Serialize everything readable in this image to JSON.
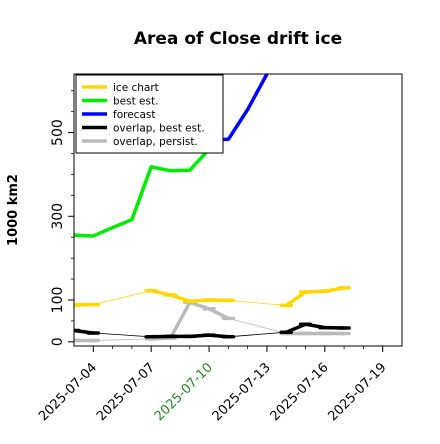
{
  "chart_data": {
    "type": "line",
    "title": "Area of Close drift ice",
    "ylabel": "1000 km2",
    "xlabel": "",
    "ylim": [
      -10,
      640
    ],
    "xlim": [
      "2025-07-03",
      "2025-07-20"
    ],
    "y_ticks": [
      {
        "value": 0,
        "label": "0"
      },
      {
        "value": 100,
        "label": "100"
      },
      {
        "value": 300,
        "label": "300"
      },
      {
        "value": 500,
        "label": "500"
      }
    ],
    "y_minor_ticks": [
      50,
      150,
      200,
      250,
      350,
      400,
      450,
      550,
      600
    ],
    "x_ticks": [
      {
        "value": "2025-07-04",
        "label": "2025-07-04",
        "color": "#000000"
      },
      {
        "value": "2025-07-07",
        "label": "2025-07-07",
        "color": "#000000"
      },
      {
        "value": "2025-07-10",
        "label": "2025-07-10",
        "color": "#228B22"
      },
      {
        "value": "2025-07-13",
        "label": "2025-07-13",
        "color": "#000000"
      },
      {
        "value": "2025-07-16",
        "label": "2025-07-16",
        "color": "#000000"
      },
      {
        "value": "2025-07-19",
        "label": "2025-07-19",
        "color": "#000000"
      }
    ],
    "x_minor_ticks": [
      "2025-07-05",
      "2025-07-06",
      "2025-07-08",
      "2025-07-09",
      "2025-07-11",
      "2025-07-12",
      "2025-07-14",
      "2025-07-15",
      "2025-07-17",
      "2025-07-18"
    ],
    "grid": false,
    "legend": {
      "position": "top-left",
      "entries": [
        {
          "label": "ice chart",
          "color": "#FFD700"
        },
        {
          "label": "best est.",
          "color": "#00EE00"
        },
        {
          "label": "forecast",
          "color": "#0000FF"
        },
        {
          "label": "overlap, best est.",
          "color": "#000000"
        },
        {
          "label": "overlap, persist.",
          "color": "#BBBBBB"
        }
      ]
    },
    "series": [
      {
        "name": "ice chart",
        "color": "#FFD700",
        "points": [
          {
            "x": "2025-07-03",
            "y": 88,
            "marker": true
          },
          {
            "x": "2025-07-04",
            "y": 89,
            "marker": true
          },
          {
            "x": "2025-07-07",
            "y": 122,
            "marker": true
          },
          {
            "x": "2025-07-08",
            "y": 112,
            "marker": true
          },
          {
            "x": "2025-07-09",
            "y": 97,
            "marker": true
          },
          {
            "x": "2025-07-10",
            "y": 100,
            "marker": true
          },
          {
            "x": "2025-07-11",
            "y": 99,
            "marker": true
          },
          {
            "x": "2025-07-14",
            "y": 87,
            "marker": true
          },
          {
            "x": "2025-07-15",
            "y": 119,
            "marker": true
          },
          {
            "x": "2025-07-16",
            "y": 121,
            "marker": true
          },
          {
            "x": "2025-07-17",
            "y": 129,
            "marker": true
          }
        ]
      },
      {
        "name": "best est.",
        "color": "#00EE00",
        "points": [
          {
            "x": "2025-07-03",
            "y": 255
          },
          {
            "x": "2025-07-04",
            "y": 253
          },
          {
            "x": "2025-07-05",
            "y": 273
          },
          {
            "x": "2025-07-06",
            "y": 292
          },
          {
            "x": "2025-07-07",
            "y": 418
          },
          {
            "x": "2025-07-08",
            "y": 409
          },
          {
            "x": "2025-07-09",
            "y": 410
          },
          {
            "x": "2025-07-10",
            "y": 460
          }
        ]
      },
      {
        "name": "forecast",
        "color": "#0000FF",
        "points": [
          {
            "x": "2025-07-10",
            "y": 482
          },
          {
            "x": "2025-07-11",
            "y": 484
          },
          {
            "x": "2025-07-12",
            "y": 555
          },
          {
            "x": "2025-07-13",
            "y": 640
          }
        ]
      },
      {
        "name": "overlap, best est.",
        "color": "#000000",
        "points": [
          {
            "x": "2025-07-03",
            "y": 27,
            "marker": true
          },
          {
            "x": "2025-07-04",
            "y": 21,
            "marker": true
          },
          {
            "x": "2025-07-07",
            "y": 12,
            "marker": true
          },
          {
            "x": "2025-07-08",
            "y": 13,
            "marker": true
          },
          {
            "x": "2025-07-09",
            "y": 13,
            "marker": true
          },
          {
            "x": "2025-07-10",
            "y": 16,
            "marker": true
          },
          {
            "x": "2025-07-11",
            "y": 12,
            "marker": true
          },
          {
            "x": "2025-07-14",
            "y": 23,
            "marker": true
          },
          {
            "x": "2025-07-15",
            "y": 42,
            "marker": true
          },
          {
            "x": "2025-07-16",
            "y": 34,
            "marker": true
          },
          {
            "x": "2025-07-17",
            "y": 33,
            "marker": true
          }
        ]
      },
      {
        "name": "overlap, persist.",
        "color": "#BBBBBB",
        "points": [
          {
            "x": "2025-07-03",
            "y": 3,
            "marker": true
          },
          {
            "x": "2025-07-04",
            "y": 3,
            "marker": true
          },
          {
            "x": "2025-07-07",
            "y": 7,
            "marker": true
          },
          {
            "x": "2025-07-08",
            "y": 9,
            "marker": true
          },
          {
            "x": "2025-07-09",
            "y": 94,
            "marker": true
          },
          {
            "x": "2025-07-10",
            "y": 79,
            "marker": true
          },
          {
            "x": "2025-07-11",
            "y": 56,
            "marker": true
          },
          {
            "x": "2025-07-14",
            "y": 20,
            "marker": true
          },
          {
            "x": "2025-07-15",
            "y": 20,
            "marker": true
          },
          {
            "x": "2025-07-16",
            "y": 20,
            "marker": true
          },
          {
            "x": "2025-07-17",
            "y": 20,
            "marker": true
          }
        ]
      }
    ]
  }
}
